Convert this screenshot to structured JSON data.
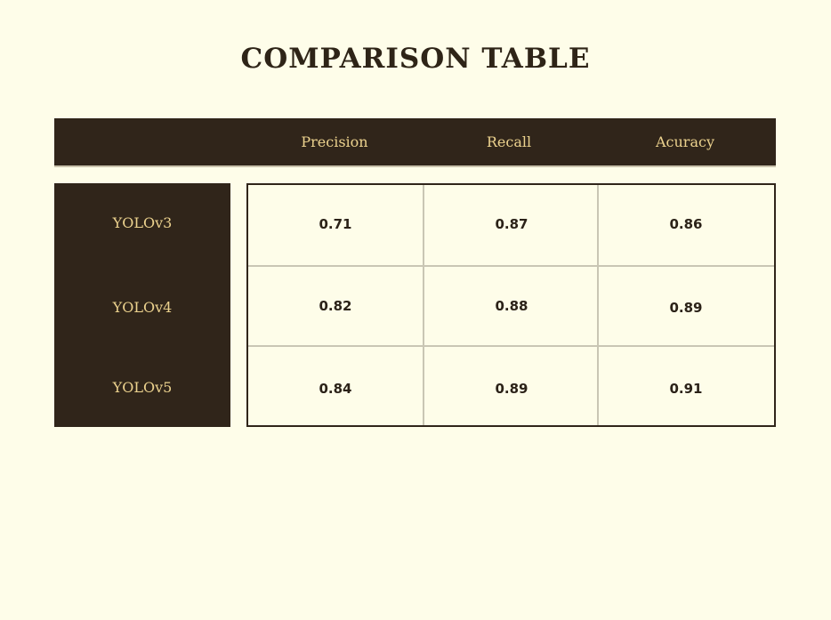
{
  "title": "COMPARISON TABLE",
  "table": {
    "columns": [
      "Precision",
      "Recall",
      "Acuracy"
    ],
    "rows": [
      {
        "label": "YOLOv3",
        "values": [
          "0.71",
          "0.87",
          "0.86"
        ]
      },
      {
        "label": "YOLOv4",
        "values": [
          "0.82",
          "0.88",
          "0.89"
        ]
      },
      {
        "label": "YOLOv5",
        "values": [
          "0.84",
          "0.89",
          "0.91"
        ]
      }
    ]
  },
  "colors": {
    "background": "#fefde9",
    "header_bg": "#30251a",
    "header_text": "#ecd28e",
    "grid_line": "#c9c6b4",
    "body_text": "#2b2218"
  }
}
